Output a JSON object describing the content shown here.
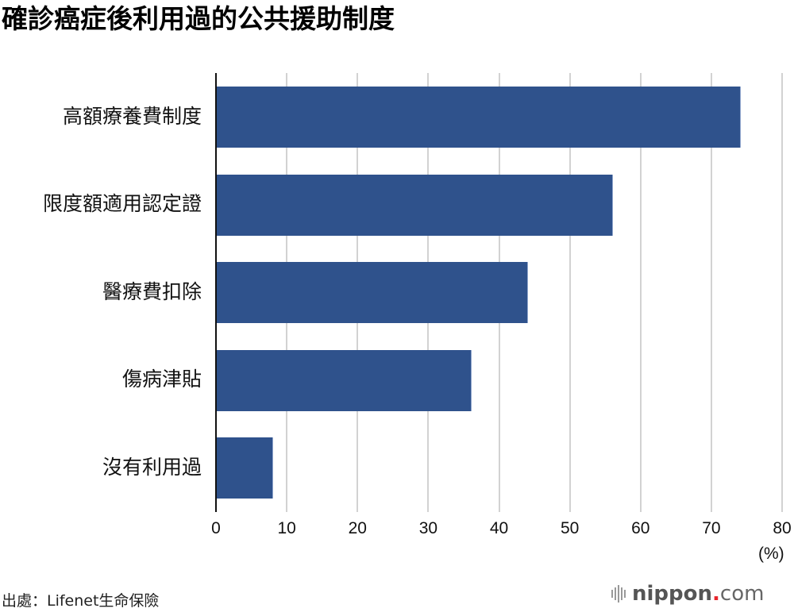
{
  "title": "確診癌症後利用過的公共援助制度",
  "chart_data": {
    "type": "bar",
    "orientation": "horizontal",
    "title": "確診癌症後利用過的公共援助制度",
    "categories": [
      "高額療養費制度",
      "限度額適用認定證",
      "醫療費扣除",
      "傷病津貼",
      "沒有利用過"
    ],
    "values": [
      74,
      56,
      44,
      36,
      8
    ],
    "xlabel": "(%)",
    "ylabel": "",
    "xlim": [
      0,
      80
    ],
    "xticks": [
      "0",
      "10",
      "20",
      "30",
      "40",
      "50",
      "60",
      "70",
      "80"
    ],
    "grid": true,
    "bar_color": "#2f528c",
    "legend": null
  },
  "unit": "(%)",
  "source": "出處：Lifenet生命保險",
  "logo": {
    "brand": "nippon",
    "dot": ".",
    "tld": "com"
  }
}
